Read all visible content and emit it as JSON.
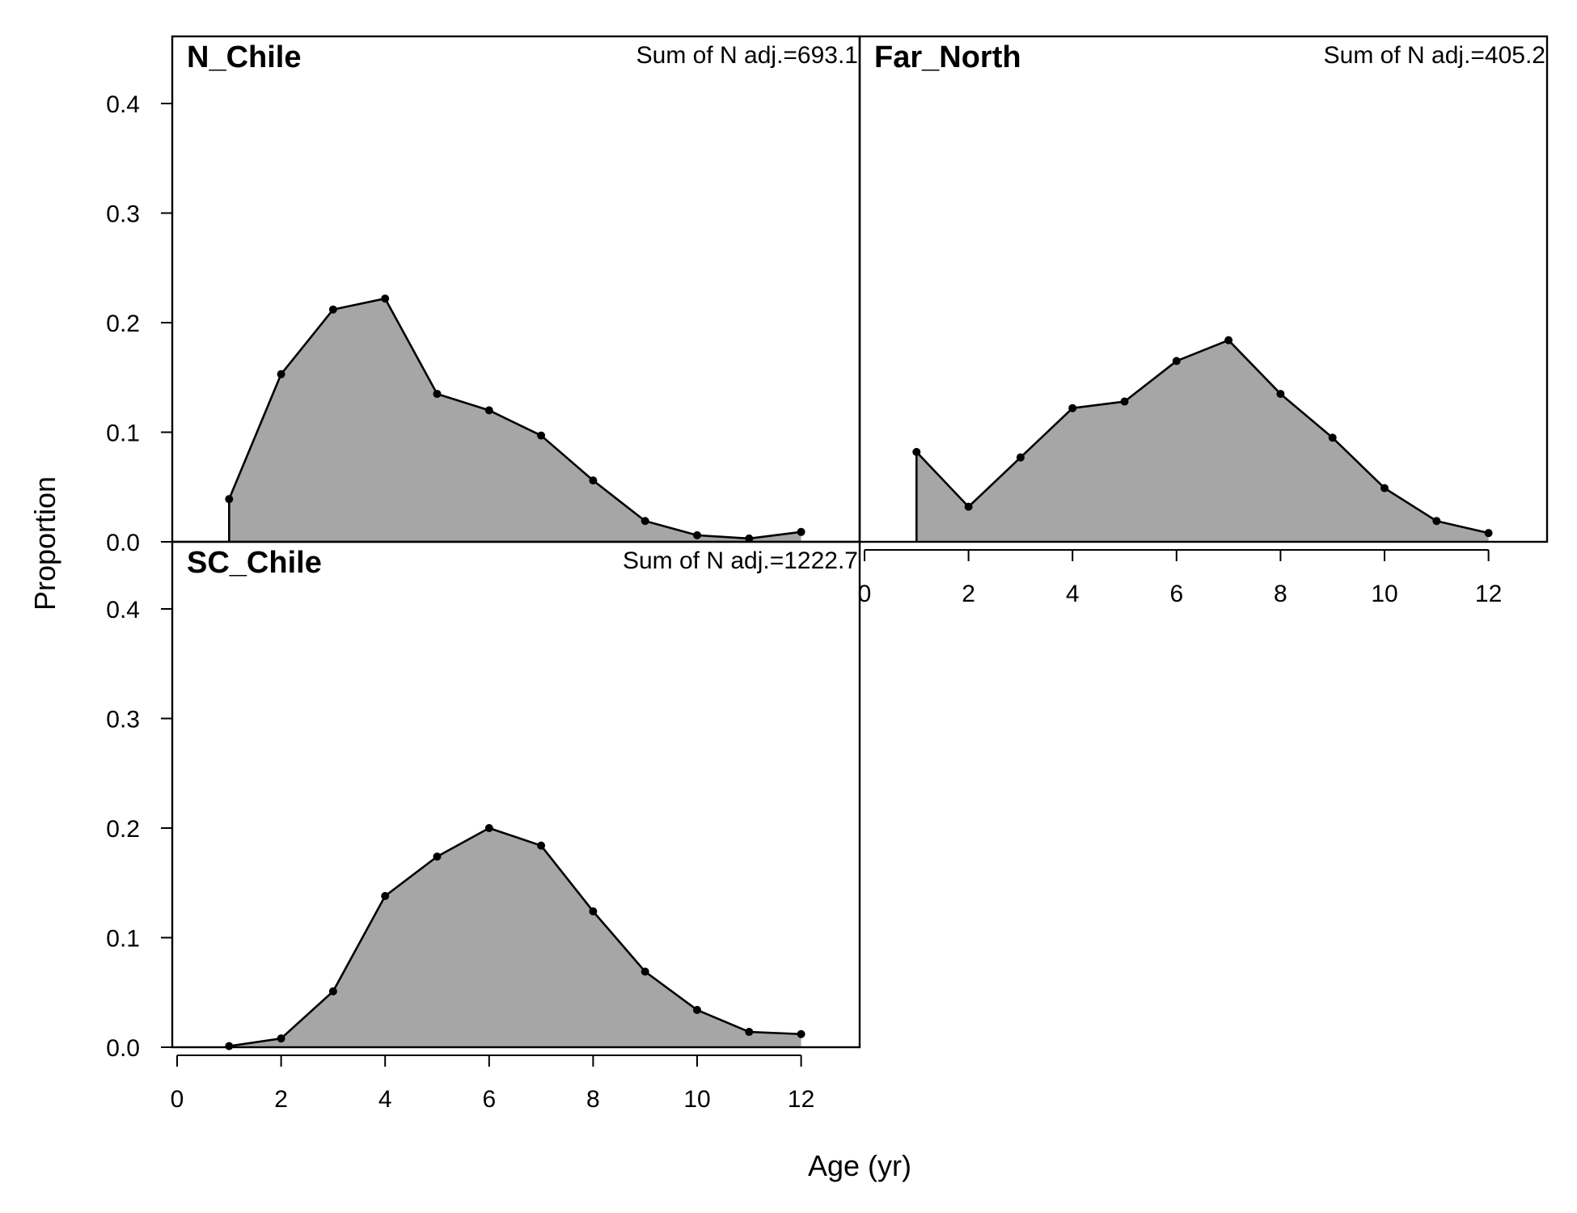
{
  "chart_data": {
    "type": "area",
    "xlabel": "Age (yr)",
    "ylabel": "Proportion",
    "xlim": [
      0,
      13
    ],
    "ylim": [
      0,
      0.46
    ],
    "x_ticks": [
      0,
      2,
      4,
      6,
      8,
      10,
      12
    ],
    "y_ticks": [
      0.0,
      0.1,
      0.2,
      0.3,
      0.4
    ],
    "y_tick_labels": [
      "0.0",
      "0.1",
      "0.2",
      "0.3",
      "0.4"
    ],
    "fill_color": "#a6a6a6",
    "line_color": "#000000",
    "grid": false,
    "panels": [
      {
        "title": "N_Chile",
        "note": "Sum of N adj.=693.1",
        "x": [
          1,
          2,
          3,
          4,
          5,
          6,
          7,
          8,
          9,
          10,
          11,
          12
        ],
        "values": [
          0.039,
          0.153,
          0.212,
          0.222,
          0.135,
          0.12,
          0.097,
          0.056,
          0.019,
          0.006,
          0.003,
          0.009
        ]
      },
      {
        "title": "Far_North",
        "note": "Sum of N adj.=405.2",
        "x": [
          1,
          2,
          3,
          4,
          5,
          6,
          7,
          8,
          9,
          10,
          11,
          12
        ],
        "values": [
          0.082,
          0.032,
          0.077,
          0.122,
          0.128,
          0.165,
          0.184,
          0.135,
          0.095,
          0.049,
          0.019,
          0.008
        ]
      },
      {
        "title": "SC_Chile",
        "note": "Sum of N adj.=1222.7",
        "x": [
          1,
          2,
          3,
          4,
          5,
          6,
          7,
          8,
          9,
          10,
          11,
          12
        ],
        "values": [
          0.001,
          0.008,
          0.051,
          0.138,
          0.174,
          0.2,
          0.184,
          0.124,
          0.069,
          0.034,
          0.014,
          0.012
        ]
      }
    ]
  }
}
